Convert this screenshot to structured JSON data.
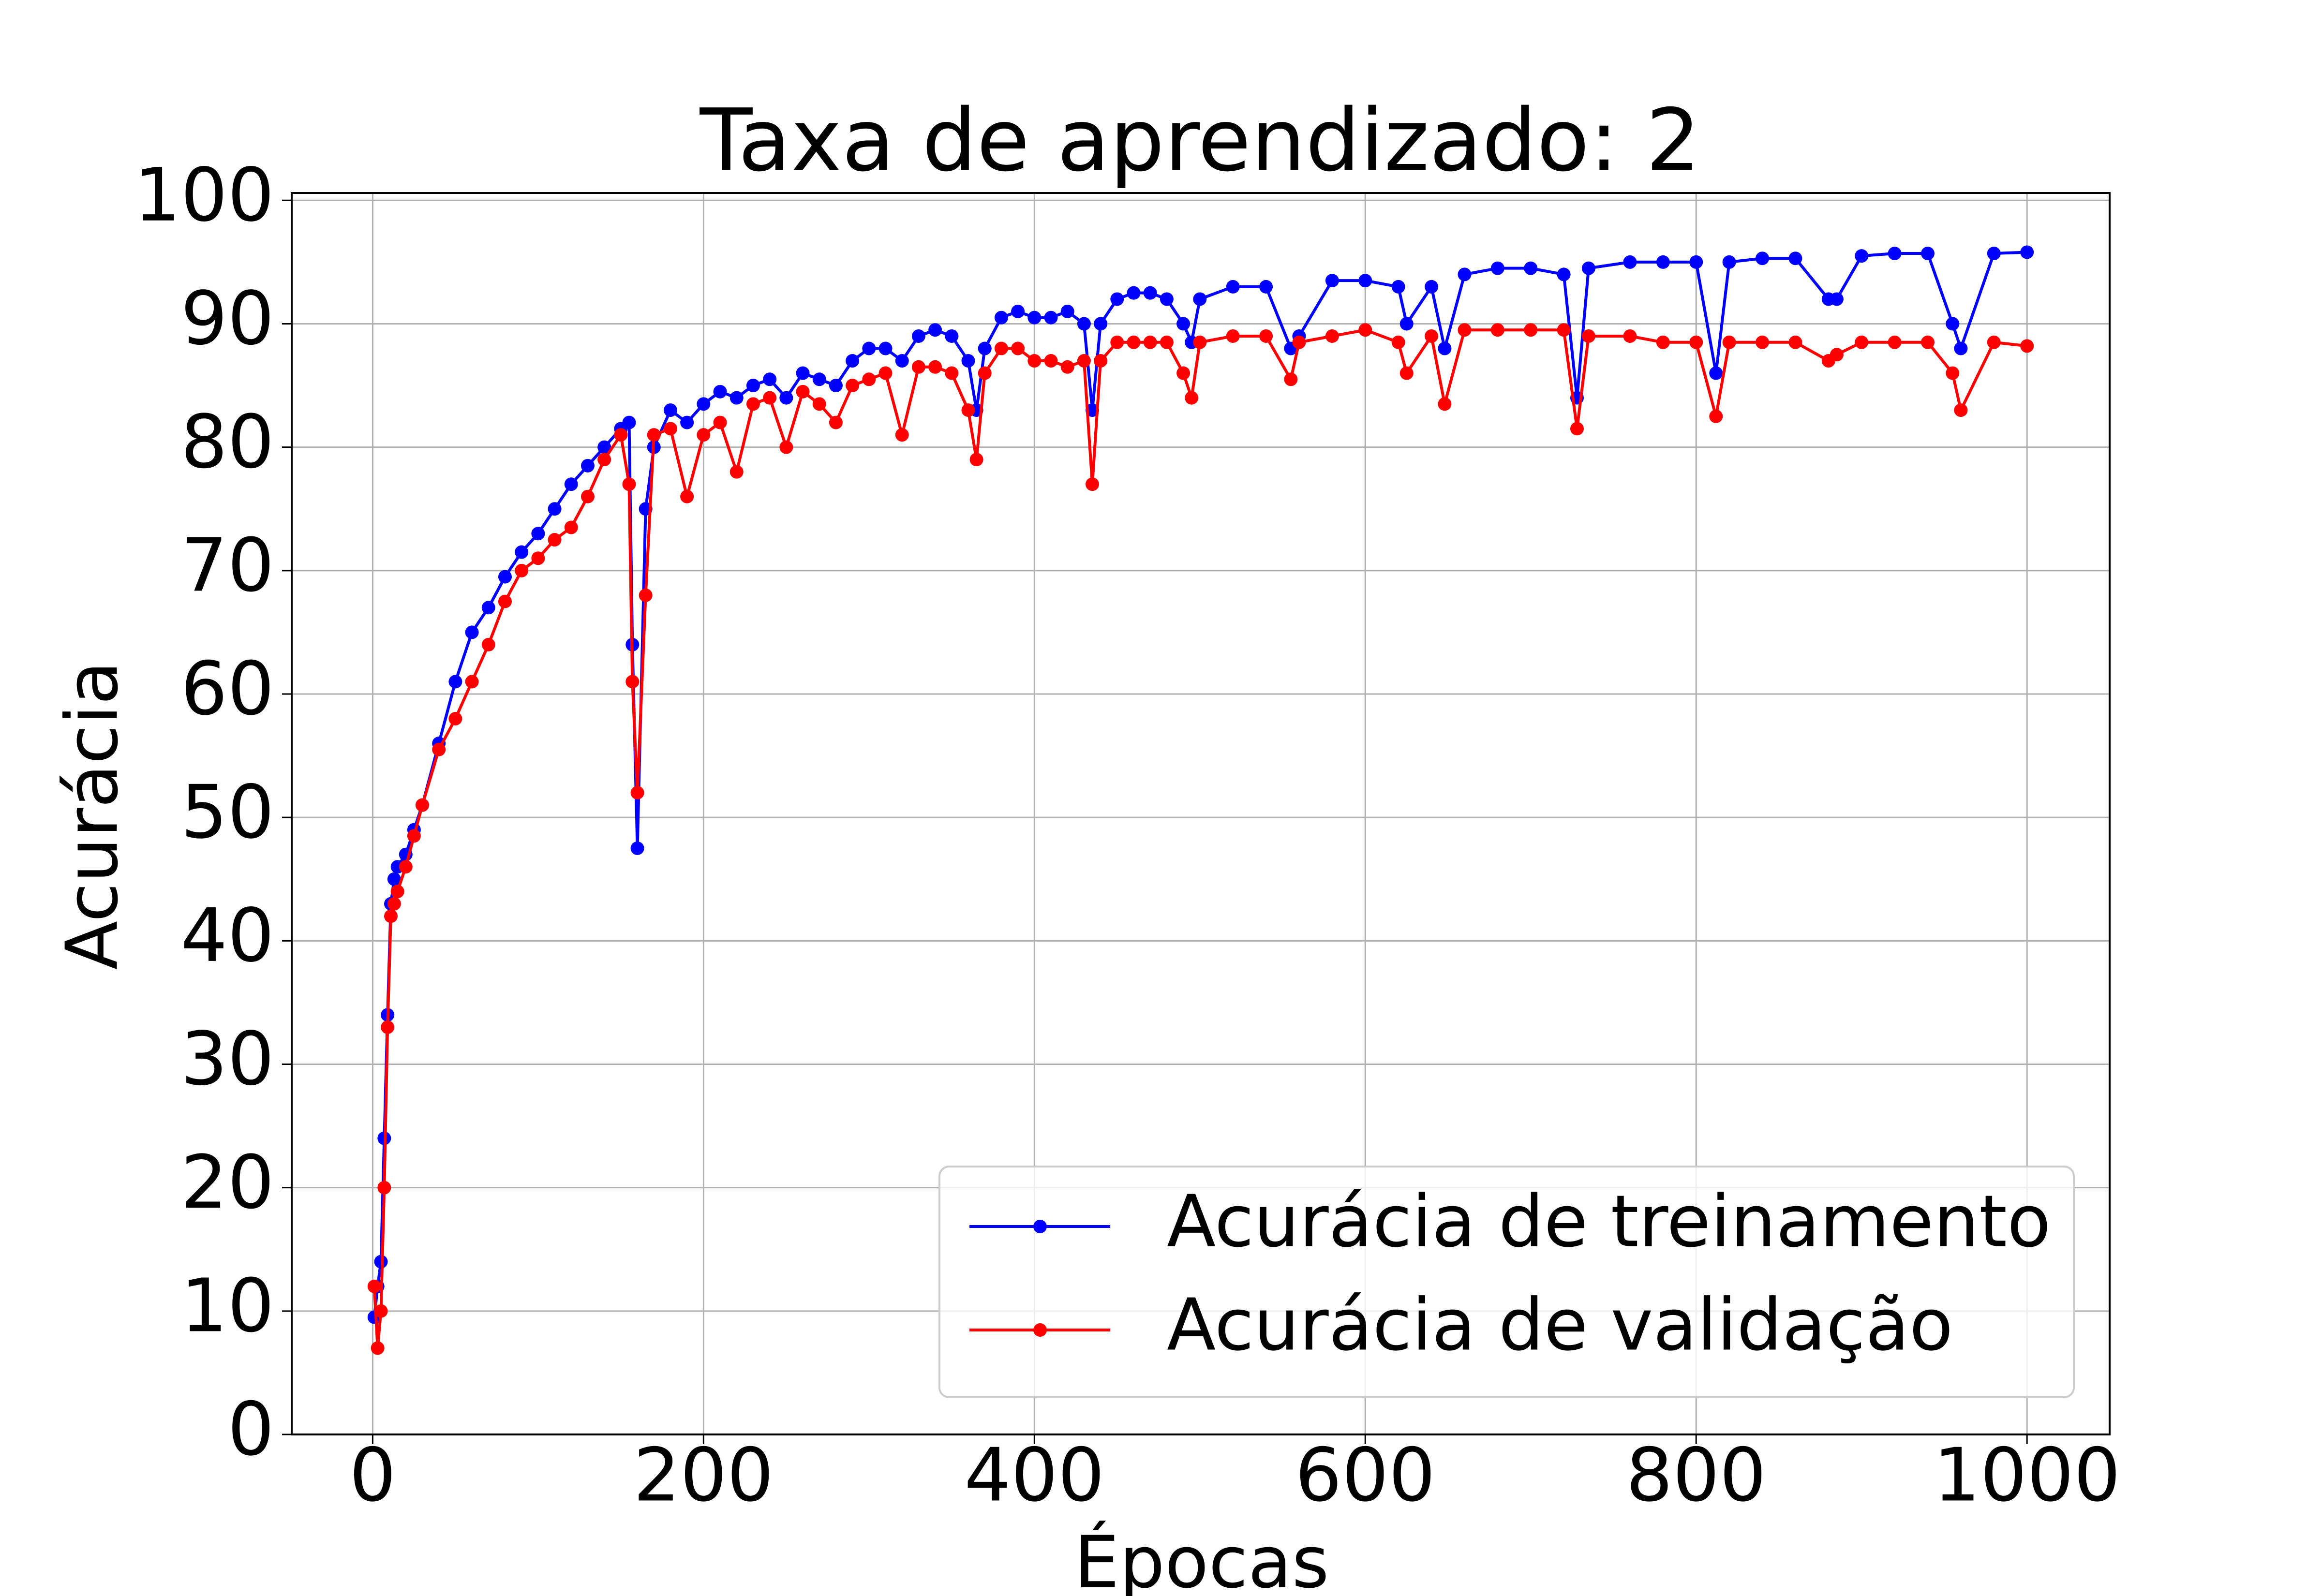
{
  "chart_data": {
    "type": "line",
    "title": "Taxa de aprendizado: 2",
    "x_label": "Épocas",
    "y_label": "Acurácia",
    "x": [
      1,
      3,
      5,
      7,
      9,
      11,
      13,
      15,
      20,
      25,
      30,
      40,
      50,
      60,
      70,
      80,
      90,
      100,
      110,
      120,
      130,
      140,
      150,
      155,
      157,
      160,
      165,
      170,
      180,
      190,
      200,
      210,
      220,
      230,
      240,
      250,
      260,
      270,
      280,
      290,
      300,
      310,
      320,
      330,
      340,
      350,
      360,
      365,
      370,
      380,
      390,
      400,
      410,
      420,
      430,
      435,
      440,
      450,
      460,
      470,
      480,
      490,
      495,
      500,
      520,
      540,
      555,
      560,
      580,
      600,
      620,
      625,
      640,
      648,
      660,
      680,
      700,
      720,
      728,
      735,
      760,
      780,
      800,
      812,
      820,
      840,
      860,
      880,
      885,
      900,
      920,
      940,
      955,
      960,
      980,
      1000
    ],
    "series": [
      {
        "name": "Acurácia de treinamento",
        "color": "#0000ff",
        "values": [
          9.5,
          12,
          14,
          24,
          34,
          43,
          45,
          46,
          47,
          49,
          51,
          56,
          61,
          65,
          67,
          69.5,
          71.5,
          73,
          75,
          77,
          78.5,
          80,
          81.5,
          82,
          64,
          47.5,
          75,
          80,
          83,
          82,
          83.5,
          84.5,
          84,
          85,
          85.5,
          84,
          86,
          85.5,
          85,
          87,
          88,
          88,
          87,
          89,
          89.5,
          89,
          87,
          83,
          88,
          90.5,
          91,
          90.5,
          90.5,
          91,
          90,
          83,
          90,
          92,
          92.5,
          92.5,
          92,
          90,
          88.5,
          92,
          93,
          93,
          88,
          89,
          93.5,
          93.5,
          93,
          90,
          93,
          88,
          94,
          94.5,
          94.5,
          94,
          84,
          94.5,
          95,
          95,
          95,
          86,
          95,
          95.3,
          95.3,
          92,
          92,
          95.5,
          95.7,
          95.7,
          90,
          88,
          95.7,
          95.8
        ]
      },
      {
        "name": "Acurácia de validação",
        "color": "#ff0000",
        "values": [
          12,
          7,
          10,
          20,
          33,
          42,
          43,
          44,
          46,
          48.5,
          51,
          55.5,
          58,
          61,
          64,
          67.5,
          70,
          71,
          72.5,
          73.5,
          76,
          79,
          81,
          77,
          61,
          52,
          68,
          81,
          81.5,
          76,
          81,
          82,
          78,
          83.5,
          84,
          80,
          84.5,
          83.5,
          82,
          85,
          85.5,
          86,
          81,
          86.5,
          86.5,
          86,
          83,
          79,
          86,
          88,
          88,
          87,
          87,
          86.5,
          87,
          77,
          87,
          88.5,
          88.5,
          88.5,
          88.5,
          86,
          84,
          88.5,
          89,
          89,
          85.5,
          88.5,
          89,
          89.5,
          88.5,
          86,
          89,
          83.5,
          89.5,
          89.5,
          89.5,
          89.5,
          81.5,
          89,
          89,
          88.5,
          88.5,
          82.5,
          88.5,
          88.5,
          88.5,
          87,
          87.5,
          88.5,
          88.5,
          88.5,
          86,
          83,
          88.5,
          88.2
        ]
      }
    ],
    "xlim": [
      -48.95,
      1049.95
    ],
    "ylim": [
      0,
      100.6
    ],
    "xticks": [
      0,
      200,
      400,
      600,
      800,
      1000
    ],
    "yticks": [
      0,
      10,
      20,
      30,
      40,
      50,
      60,
      70,
      80,
      90,
      100
    ],
    "grid": true,
    "legend": "lower right"
  }
}
